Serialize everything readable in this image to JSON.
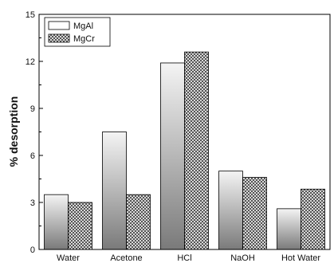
{
  "chart_data": {
    "type": "bar",
    "categories": [
      "Water",
      "Acetone",
      "HCl",
      "NaOH",
      "Hot Water"
    ],
    "series": [
      {
        "name": "MgAl",
        "values": [
          3.5,
          7.5,
          11.9,
          5.0,
          2.6
        ]
      },
      {
        "name": "MgCr",
        "values": [
          3.0,
          3.5,
          12.6,
          4.6,
          3.85
        ]
      }
    ],
    "title": "",
    "xlabel": "",
    "ylabel": "% desorption",
    "ylim": [
      0,
      15
    ],
    "yticks": [
      0,
      3,
      6,
      9,
      12,
      15
    ],
    "legend_position": "top-left",
    "grid": false
  }
}
